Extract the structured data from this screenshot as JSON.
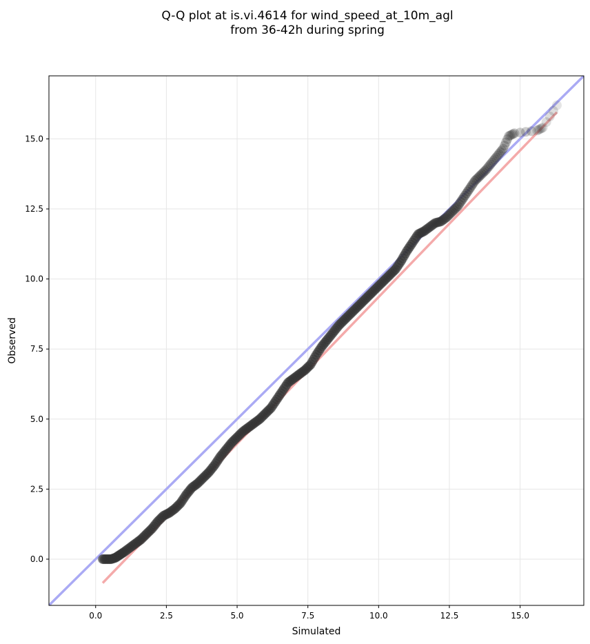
{
  "chart_data": {
    "type": "scatter",
    "title_lines": [
      "Q-Q plot at is.vi.4614 for wind_speed_at_10m_agl",
      "from 36-42h during spring"
    ],
    "xlabel": "Simulated",
    "ylabel": "Observed",
    "xlim": [
      -1.65,
      17.25
    ],
    "ylim": [
      -1.65,
      17.25
    ],
    "x_ticks": [
      0.0,
      2.5,
      5.0,
      7.5,
      10.0,
      12.5,
      15.0
    ],
    "y_ticks": [
      0.0,
      2.5,
      5.0,
      7.5,
      10.0,
      12.5,
      15.0
    ],
    "x_tick_labels": [
      "0.0",
      "2.5",
      "5.0",
      "7.5",
      "10.0",
      "12.5",
      "15.0"
    ],
    "y_tick_labels": [
      "0.0",
      "2.5",
      "5.0",
      "7.5",
      "10.0",
      "12.5",
      "15.0"
    ],
    "grid": true,
    "reference_line": {
      "x": [
        -1.65,
        17.25
      ],
      "y": [
        -1.65,
        17.25
      ],
      "color": "#aaaaf4"
    },
    "fit_line": {
      "x": [
        0.25,
        16.3
      ],
      "y": [
        -0.85,
        15.95
      ],
      "color": "#f4aaaa"
    },
    "point_color": "#333333",
    "points": {
      "x": [
        0.25,
        0.4,
        0.55,
        0.7,
        0.85,
        1.0,
        1.2,
        1.4,
        1.6,
        1.8,
        2.0,
        2.2,
        2.4,
        2.6,
        2.8,
        3.0,
        3.2,
        3.4,
        3.6,
        3.8,
        4.0,
        4.2,
        4.4,
        4.6,
        4.8,
        5.0,
        5.2,
        5.4,
        5.6,
        5.8,
        6.0,
        6.2,
        6.4,
        6.6,
        6.8,
        7.0,
        7.2,
        7.4,
        7.6,
        7.8,
        8.0,
        8.2,
        8.4,
        8.6,
        8.8,
        9.0,
        9.2,
        9.4,
        9.6,
        9.8,
        10.0,
        10.2,
        10.4,
        10.6,
        10.8,
        11.0,
        11.2,
        11.4,
        11.6,
        11.8,
        12.0,
        12.2,
        12.4,
        12.6,
        12.8,
        13.0,
        13.2,
        13.4,
        13.6,
        13.8,
        14.0,
        14.2,
        14.4,
        14.6,
        14.8,
        15.6,
        15.8,
        16.3
      ],
      "y": [
        0.0,
        0.0,
        0.0,
        0.05,
        0.15,
        0.25,
        0.4,
        0.55,
        0.7,
        0.9,
        1.1,
        1.35,
        1.55,
        1.65,
        1.8,
        2.0,
        2.3,
        2.55,
        2.7,
        2.9,
        3.1,
        3.35,
        3.65,
        3.9,
        4.15,
        4.35,
        4.55,
        4.7,
        4.85,
        5.0,
        5.2,
        5.4,
        5.7,
        6.0,
        6.3,
        6.45,
        6.6,
        6.75,
        6.95,
        7.3,
        7.6,
        7.85,
        8.1,
        8.35,
        8.55,
        8.75,
        8.95,
        9.15,
        9.35,
        9.55,
        9.75,
        9.95,
        10.15,
        10.35,
        10.65,
        11.0,
        11.3,
        11.6,
        11.7,
        11.85,
        12.0,
        12.05,
        12.2,
        12.4,
        12.6,
        12.9,
        13.2,
        13.5,
        13.7,
        13.9,
        14.15,
        14.4,
        14.65,
        15.1,
        15.2,
        15.3,
        15.4,
        16.2
      ]
    }
  }
}
